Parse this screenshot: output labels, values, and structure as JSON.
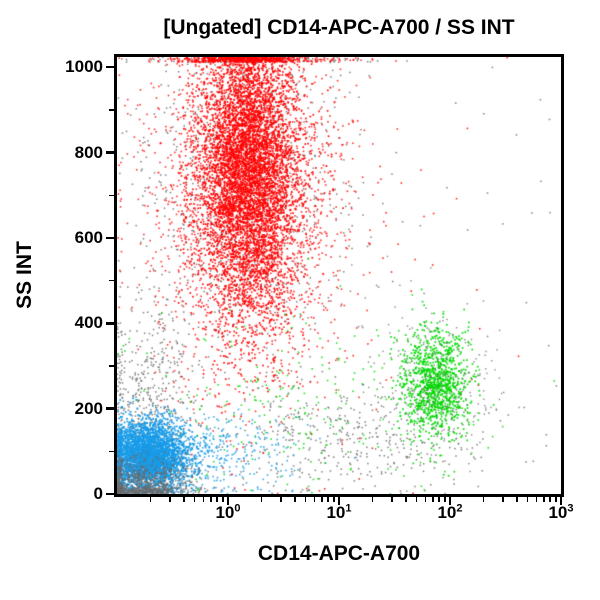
{
  "chart_data": {
    "type": "scatter",
    "title": "[Ungated] CD14-APC-A700 / SS INT",
    "xlabel": "CD14-APC-A700",
    "ylabel": "SS INT",
    "x_scale": "log10",
    "x_tick_base": "10",
    "x_tick_exponents": [
      0,
      1,
      2,
      3
    ],
    "x_range_log10": [
      -1,
      3
    ],
    "y_ticks": [
      0,
      200,
      400,
      600,
      800,
      1000
    ],
    "y_minor_tick_step": 100,
    "y_range": [
      0,
      1024
    ],
    "grid": false,
    "legend": "none",
    "background_color": "#ffffff",
    "frame_color": "#000000",
    "point_colors": {
      "granulocytes": "#FF0000",
      "monocytes": "#00D900",
      "lymphocytes": "#189BE8",
      "debris": "#6A6A6A"
    },
    "populations": [
      {
        "name": "debris-column-left",
        "color": "#6A6A6A",
        "n": 450,
        "x_log_mean": -0.72,
        "x_log_sd": 0.22,
        "y_mean": 230,
        "y_sd": 120,
        "size": 1.5,
        "alpha": 0.85
      },
      {
        "name": "debris-band-lower",
        "color": "#6A6A6A",
        "n": 380,
        "x_log_mean": 1.0,
        "x_log_sd": 0.6,
        "y_mean": 130,
        "y_sd": 60,
        "size": 1.5,
        "alpha": 0.85
      },
      {
        "name": "debris-sparse",
        "color": "#6A6A6A",
        "n": 100,
        "x_log_uniform": [
          -1,
          3
        ],
        "y_uniform": [
          0,
          1024
        ],
        "size": 1.5,
        "alpha": 0.85
      },
      {
        "name": "debris-granulocyte-mix",
        "color": "#6A6A6A",
        "n": 900,
        "x_log_mean": 0.15,
        "x_log_sd": 0.5,
        "y_mean": 720,
        "y_sd": 240,
        "size": 1.5,
        "alpha": 0.85
      },
      {
        "name": "granulocytes-halo",
        "color": "#FF0000",
        "n": 2800,
        "x_log_mean": 0.18,
        "x_log_sd": 0.42,
        "y_mean": 720,
        "y_sd": 230,
        "size": 1.6,
        "alpha": 0.8
      },
      {
        "name": "granulocytes-core",
        "color": "#FF0000",
        "n": 5500,
        "x_log_mean": 0.18,
        "x_log_sd": 0.22,
        "y_mean": 760,
        "y_sd": 170,
        "size": 1.7,
        "alpha": 0.95
      },
      {
        "name": "granulocyte-strays",
        "color": "#FF0000",
        "n": 80,
        "x_log_mean": 1.0,
        "x_log_sd": 0.7,
        "y_mean": 500,
        "y_sd": 280,
        "size": 1.6,
        "alpha": 0.85
      },
      {
        "name": "monocyte-scatter",
        "color": "#00D900",
        "n": 250,
        "x_log_mean": 0.7,
        "x_log_sd": 0.9,
        "y_mean": 200,
        "y_sd": 110,
        "size": 1.6,
        "alpha": 0.85
      },
      {
        "name": "monocytes-core",
        "color": "#00D900",
        "n": 1100,
        "x_log_mean": 1.87,
        "x_log_sd": 0.15,
        "y_mean": 260,
        "y_sd": 60,
        "size": 1.7,
        "alpha": 0.95
      },
      {
        "name": "debris-monocyte-mix",
        "color": "#6A6A6A",
        "n": 260,
        "x_log_mean": 1.85,
        "x_log_sd": 0.28,
        "y_mean": 265,
        "y_sd": 95,
        "size": 1.4,
        "alpha": 0.8
      },
      {
        "name": "lymphocytes-tail",
        "color": "#189BE8",
        "n": 450,
        "x_log_mean": -0.3,
        "x_log_sd": 0.45,
        "y_mean": 95,
        "y_sd": 50,
        "size": 1.6,
        "alpha": 0.85
      },
      {
        "name": "lymphocytes-core",
        "color": "#189BE8",
        "n": 3200,
        "x_log_mean": -0.72,
        "x_log_sd": 0.17,
        "y_mean": 88,
        "y_sd": 40,
        "size": 1.8,
        "alpha": 0.95
      },
      {
        "name": "debris-bottom-left",
        "color": "#6A6A6A",
        "n": 900,
        "x_log_mean": -0.78,
        "x_log_sd": 0.22,
        "y_mean": 18,
        "y_sd": 35,
        "size": 1.5,
        "alpha": 0.85
      }
    ]
  }
}
